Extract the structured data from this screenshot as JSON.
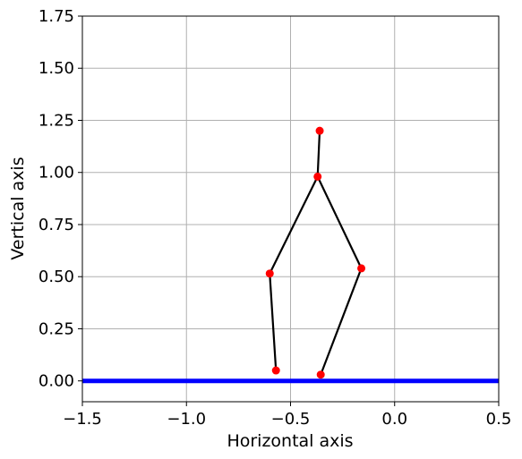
{
  "chart_data": {
    "type": "line",
    "title": "",
    "xlabel": "Horizontal axis",
    "ylabel": "Vertical axis",
    "xlim": [
      -1.5,
      0.5
    ],
    "ylim": [
      -0.1,
      1.75
    ],
    "grid": true,
    "x_ticks": [
      -1.5,
      -1.0,
      -0.5,
      0.0,
      0.5
    ],
    "x_tick_labels": [
      "−1.5",
      "−1.0",
      "−0.5",
      "0.0",
      "0.5"
    ],
    "y_ticks": [
      0.0,
      0.25,
      0.5,
      0.75,
      1.0,
      1.25,
      1.5,
      1.75
    ],
    "y_tick_labels": [
      "0.00",
      "0.25",
      "0.50",
      "0.75",
      "1.00",
      "1.25",
      "1.50",
      "1.75"
    ],
    "ground_line": {
      "y": 0.0,
      "color": "#0000ff"
    },
    "skeleton_color": "#000000",
    "joint_color": "#ff0000",
    "segments": [
      {
        "x": [
          -0.36,
          -0.37
        ],
        "y": [
          1.2,
          0.98
        ]
      },
      {
        "x": [
          -0.37,
          -0.6,
          -0.57
        ],
        "y": [
          0.98,
          0.515,
          0.05
        ]
      },
      {
        "x": [
          -0.37,
          -0.16,
          -0.355
        ],
        "y": [
          0.98,
          0.54,
          0.03
        ]
      }
    ],
    "joints": {
      "x": [
        -0.36,
        -0.37,
        -0.6,
        -0.57,
        -0.16,
        -0.355
      ],
      "y": [
        1.2,
        0.98,
        0.515,
        0.05,
        0.54,
        0.03
      ]
    }
  }
}
